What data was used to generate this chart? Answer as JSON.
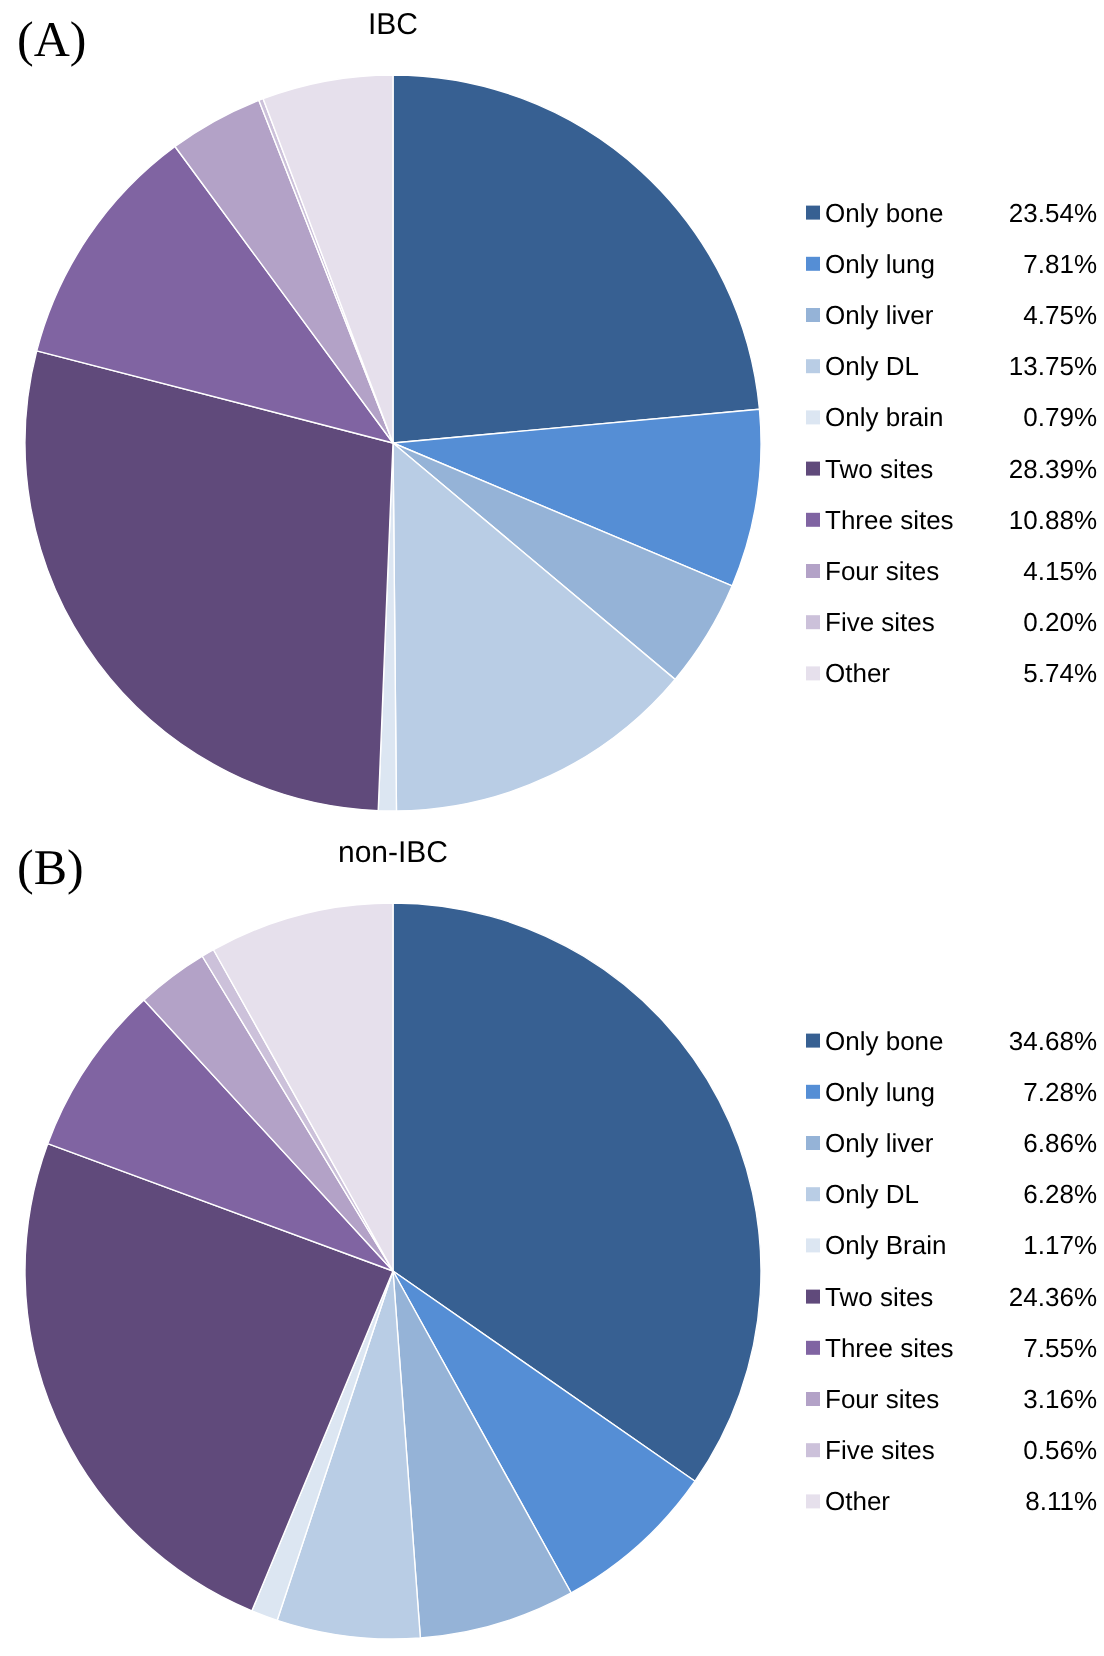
{
  "chart_data": [
    {
      "type": "pie",
      "title": "IBC",
      "annotations": [
        "(A)"
      ],
      "legend": "right",
      "categories": [
        "Only bone",
        "Only lung",
        "Only liver",
        "Only DL",
        "Only brain",
        "Two sites",
        "Three sites",
        "Four sites",
        "Five sites",
        "Other"
      ],
      "values": [
        23.54,
        7.81,
        4.75,
        13.75,
        0.79,
        28.39,
        10.88,
        4.15,
        0.2,
        5.74
      ],
      "value_labels": [
        "23.54%",
        "7.81%",
        "4.75%",
        "13.75%",
        "0.79%",
        "28.39%",
        "10.88%",
        "4.15%",
        "0.20%",
        "5.74%"
      ],
      "colors": [
        "#376092",
        "#558ed5",
        "#95b3d7",
        "#b9cde5",
        "#dce6f2",
        "#604a7b",
        "#8064a2",
        "#b3a2c7",
        "#ccc1da",
        "#e6e0ec"
      ]
    },
    {
      "type": "pie",
      "title": "non-IBC",
      "annotations": [
        "(B)"
      ],
      "legend": "right",
      "categories": [
        "Only bone",
        "Only lung",
        "Only liver",
        "Only DL",
        "Only Brain",
        "Two sites",
        "Three sites",
        "Four sites",
        "Five sites",
        "Other"
      ],
      "values": [
        34.68,
        7.28,
        6.86,
        6.28,
        1.17,
        24.36,
        7.55,
        3.16,
        0.56,
        8.11
      ],
      "value_labels": [
        "34.68%",
        "7.28%",
        "6.86%",
        "6.28%",
        "1.17%",
        "24.36%",
        "7.55%",
        "3.16%",
        "0.56%",
        "8.11%"
      ],
      "colors": [
        "#376092",
        "#558ed5",
        "#95b3d7",
        "#b9cde5",
        "#dce6f2",
        "#604a7b",
        "#8064a2",
        "#b3a2c7",
        "#ccc1da",
        "#e6e0ec"
      ]
    }
  ]
}
